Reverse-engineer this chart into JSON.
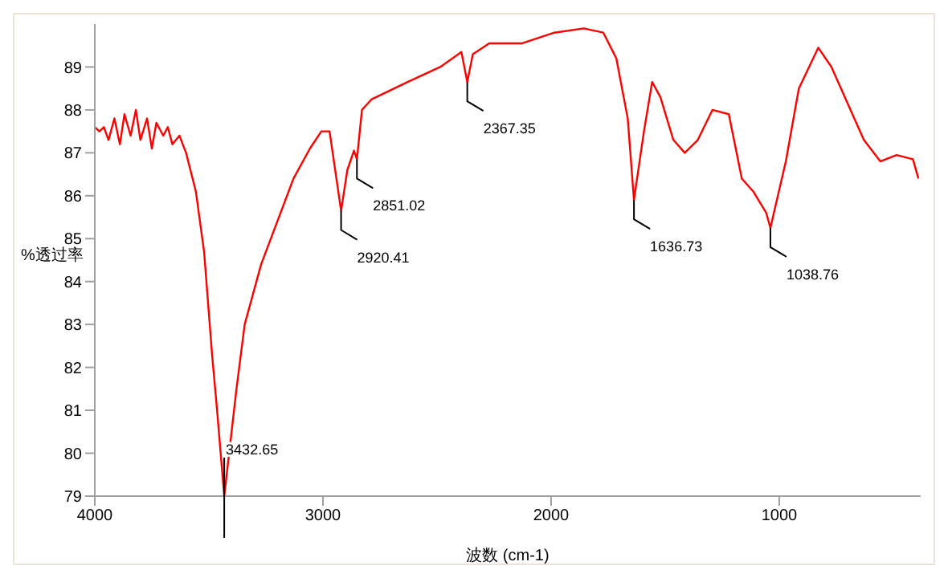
{
  "chart_data": {
    "type": "line",
    "xlabel": "波数 (cm-1)",
    "ylabel": "%透过率",
    "x": [
      4000,
      3980,
      3960,
      3940,
      3914,
      3890,
      3870,
      3843,
      3820,
      3800,
      3771,
      3750,
      3730,
      3700,
      3680,
      3660,
      3629,
      3600,
      3557,
      3521,
      3486,
      3464,
      3432.65,
      3379,
      3343,
      3271,
      3200,
      3129,
      3057,
      3007,
      2971,
      2920.41,
      2893,
      2864,
      2851.02,
      2829,
      2786,
      2629,
      2486,
      2393,
      2367.35,
      2343,
      2271,
      2129,
      1986,
      1857,
      1771,
      1714,
      1664,
      1636.73,
      1593,
      1557,
      1521,
      1464,
      1414,
      1357,
      1293,
      1221,
      1164,
      1114,
      1057,
      1038.76,
      971,
      914,
      829,
      771,
      700,
      629,
      557,
      486,
      414,
      390
    ],
    "series": [
      {
        "color": "#ff0000",
        "values": [
          87.6,
          87.5,
          87.6,
          87.3,
          87.8,
          87.2,
          87.9,
          87.4,
          88.0,
          87.3,
          87.8,
          87.1,
          87.7,
          87.4,
          87.6,
          87.2,
          87.4,
          87.0,
          86.1,
          84.7,
          82.3,
          81.0,
          79.0,
          81.5,
          83.0,
          84.4,
          85.4,
          86.4,
          87.1,
          87.5,
          87.5,
          85.65,
          86.6,
          87.05,
          86.85,
          88.0,
          88.25,
          88.65,
          89.0,
          89.35,
          88.65,
          89.3,
          89.55,
          89.55,
          89.8,
          89.9,
          89.8,
          89.2,
          87.8,
          85.9,
          87.5,
          88.65,
          88.3,
          87.3,
          87.0,
          87.3,
          88.0,
          87.9,
          86.4,
          86.1,
          85.6,
          85.25,
          86.8,
          88.5,
          89.45,
          89.0,
          88.15,
          87.3,
          86.8,
          86.95,
          86.85,
          86.4
        ]
      }
    ],
    "xlim": [
      4000,
      380
    ],
    "xticks": [
      4000,
      3000,
      2000,
      1000
    ],
    "ylim": [
      79,
      90
    ],
    "yticks": [
      79,
      80,
      81,
      82,
      83,
      84,
      85,
      86,
      87,
      88,
      89
    ],
    "grid": false,
    "legend": false,
    "marker": "none",
    "line_style": "solid",
    "annotations": [
      {
        "text": "3432.65",
        "x": 3432.65,
        "y": 79.0
      },
      {
        "text": "2920.41",
        "x": 2920.41,
        "y": 85.65
      },
      {
        "text": "2851.02",
        "x": 2851.02,
        "y": 86.85
      },
      {
        "text": "2367.35",
        "x": 2367.35,
        "y": 88.65
      },
      {
        "text": "1636.73",
        "x": 1636.73,
        "y": 85.9
      },
      {
        "text": "1038.76",
        "x": 1038.76,
        "y": 85.25
      }
    ]
  }
}
